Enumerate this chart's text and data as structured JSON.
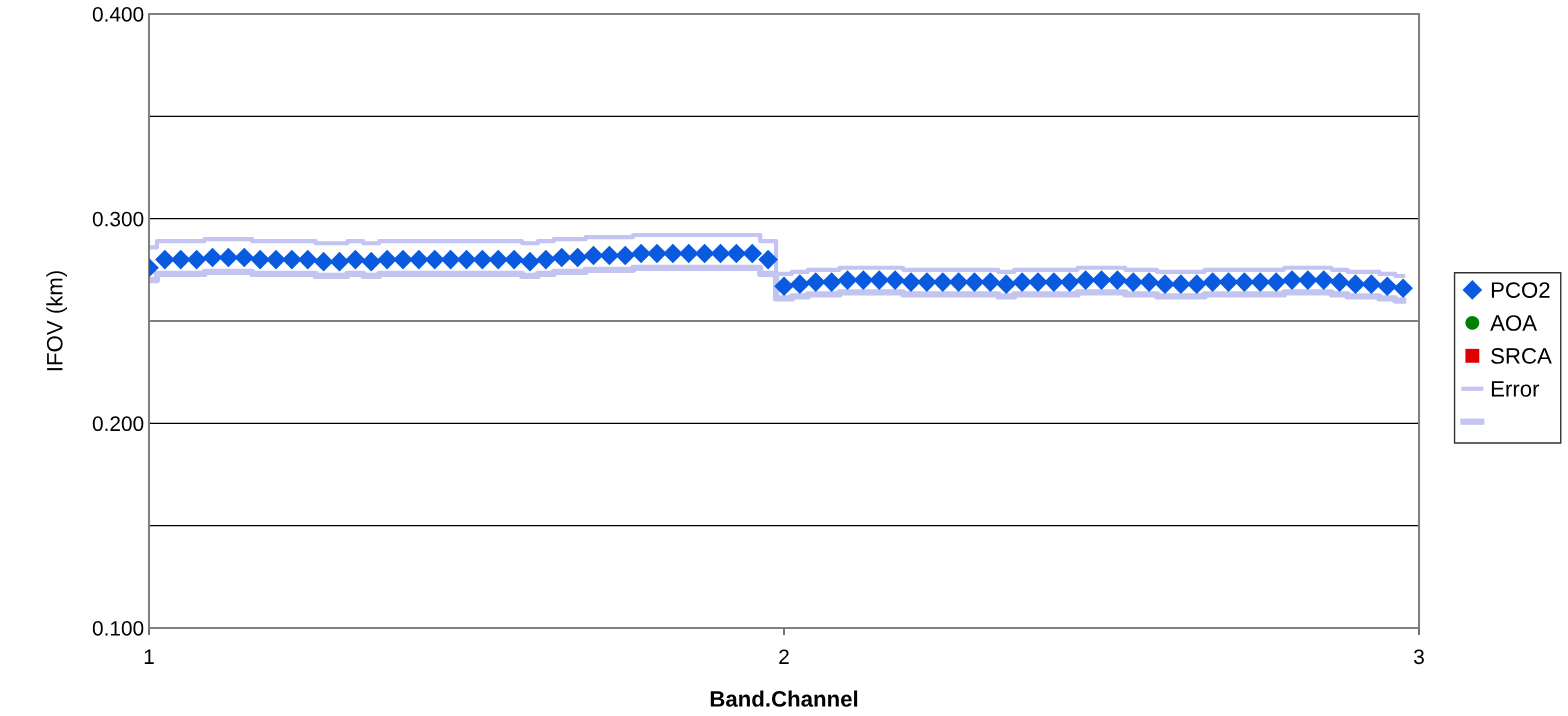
{
  "chart_data": {
    "type": "scatter",
    "xlabel": "Band.Channel",
    "ylabel": "IFOV (km)",
    "x": [
      1,
      1.025,
      1.05,
      1.075,
      1.1,
      1.125,
      1.15,
      1.175,
      1.2,
      1.225,
      1.25,
      1.275,
      1.3,
      1.325,
      1.35,
      1.375,
      1.4,
      1.425,
      1.45,
      1.475,
      1.5,
      1.525,
      1.55,
      1.575,
      1.6,
      1.625,
      1.65,
      1.675,
      1.7,
      1.725,
      1.75,
      1.775,
      1.8,
      1.825,
      1.85,
      1.875,
      1.9,
      1.925,
      1.95,
      1.975,
      2,
      2.025,
      2.05,
      2.075,
      2.1,
      2.125,
      2.15,
      2.175,
      2.2,
      2.225,
      2.25,
      2.275,
      2.3,
      2.325,
      2.35,
      2.375,
      2.4,
      2.425,
      2.45,
      2.475,
      2.5,
      2.525,
      2.55,
      2.575,
      2.6,
      2.625,
      2.65,
      2.675,
      2.7,
      2.725,
      2.75,
      2.775,
      2.8,
      2.825,
      2.85,
      2.875,
      2.9,
      2.925,
      2.95,
      2.975
    ],
    "series": [
      {
        "name": "PCO2",
        "color": "#0a5ae0",
        "marker": "diamond",
        "values": [
          0.276,
          0.28,
          0.28,
          0.28,
          0.281,
          0.281,
          0.281,
          0.28,
          0.28,
          0.28,
          0.28,
          0.279,
          0.279,
          0.28,
          0.279,
          0.28,
          0.28,
          0.28,
          0.28,
          0.28,
          0.28,
          0.28,
          0.28,
          0.28,
          0.279,
          0.28,
          0.281,
          0.281,
          0.282,
          0.282,
          0.282,
          0.283,
          0.283,
          0.283,
          0.283,
          0.283,
          0.283,
          0.283,
          0.283,
          0.28,
          0.267,
          0.268,
          0.269,
          0.269,
          0.27,
          0.27,
          0.27,
          0.27,
          0.269,
          0.269,
          0.269,
          0.269,
          0.269,
          0.269,
          0.268,
          0.269,
          0.269,
          0.269,
          0.269,
          0.27,
          0.27,
          0.27,
          0.269,
          0.269,
          0.268,
          0.268,
          0.268,
          0.269,
          0.269,
          0.269,
          0.269,
          0.269,
          0.27,
          0.27,
          0.27,
          0.269,
          0.268,
          0.268,
          0.267,
          0.266
        ]
      },
      {
        "name": "AOA",
        "color": "#008000",
        "marker": "circle",
        "values": [
          null,
          null,
          null,
          null,
          null,
          null,
          null,
          null,
          null,
          null,
          null,
          null,
          null,
          null,
          null,
          null,
          null,
          null,
          null,
          null,
          null,
          null,
          null,
          null,
          null,
          null,
          null,
          null,
          null,
          null,
          null,
          null,
          null,
          null,
          null,
          null,
          null,
          null,
          null,
          null,
          null,
          null,
          null,
          null,
          null,
          null,
          null,
          null,
          null,
          null,
          null,
          null,
          null,
          null,
          null,
          null,
          null,
          null,
          null,
          null,
          null,
          null,
          null,
          null,
          null,
          null,
          null,
          null,
          null,
          null,
          null,
          null,
          null,
          null,
          null,
          null,
          null,
          null,
          null,
          null
        ]
      },
      {
        "name": "SRCA",
        "color": "#e00000",
        "marker": "square",
        "values": [
          null,
          null,
          null,
          null,
          null,
          null,
          null,
          null,
          null,
          null,
          null,
          null,
          null,
          null,
          null,
          null,
          null,
          null,
          null,
          null,
          null,
          null,
          null,
          null,
          null,
          null,
          null,
          null,
          null,
          null,
          null,
          null,
          null,
          null,
          null,
          null,
          null,
          null,
          null,
          null,
          null,
          null,
          null,
          null,
          null,
          null,
          null,
          null,
          null,
          null,
          null,
          null,
          null,
          null,
          null,
          null,
          null,
          null,
          null,
          null,
          null,
          null,
          null,
          null,
          null,
          null,
          null,
          null,
          null,
          null,
          null,
          null,
          null,
          null,
          null,
          null,
          null,
          null,
          null,
          null
        ]
      },
      {
        "name": "Error",
        "type": "step",
        "color": "#c4c4f2",
        "values": [
          0.286,
          0.289,
          0.289,
          0.289,
          0.29,
          0.29,
          0.29,
          0.289,
          0.289,
          0.289,
          0.289,
          0.288,
          0.288,
          0.289,
          0.288,
          0.289,
          0.289,
          0.289,
          0.289,
          0.289,
          0.289,
          0.289,
          0.289,
          0.289,
          0.288,
          0.289,
          0.29,
          0.29,
          0.291,
          0.291,
          0.291,
          0.292,
          0.292,
          0.292,
          0.292,
          0.292,
          0.292,
          0.292,
          0.292,
          0.289,
          0.273,
          0.274,
          0.275,
          0.275,
          0.276,
          0.276,
          0.276,
          0.276,
          0.275,
          0.275,
          0.275,
          0.275,
          0.275,
          0.275,
          0.274,
          0.275,
          0.275,
          0.275,
          0.275,
          0.276,
          0.276,
          0.276,
          0.275,
          0.275,
          0.274,
          0.274,
          0.274,
          0.275,
          0.275,
          0.275,
          0.275,
          0.275,
          0.276,
          0.276,
          0.276,
          0.275,
          0.274,
          0.274,
          0.273,
          0.272
        ]
      },
      {
        "type": "step",
        "color": "#c4c4f1",
        "values": [
          0.27,
          0.273,
          0.273,
          0.273,
          0.274,
          0.274,
          0.274,
          0.273,
          0.273,
          0.273,
          0.273,
          0.272,
          0.272,
          0.273,
          0.272,
          0.273,
          0.273,
          0.273,
          0.273,
          0.273,
          0.273,
          0.273,
          0.273,
          0.273,
          0.272,
          0.273,
          0.274,
          0.274,
          0.275,
          0.275,
          0.275,
          0.276,
          0.276,
          0.276,
          0.276,
          0.276,
          0.276,
          0.276,
          0.276,
          0.273,
          0.261,
          0.262,
          0.263,
          0.263,
          0.264,
          0.264,
          0.264,
          0.264,
          0.263,
          0.263,
          0.263,
          0.263,
          0.263,
          0.263,
          0.262,
          0.263,
          0.263,
          0.263,
          0.263,
          0.264,
          0.264,
          0.264,
          0.263,
          0.263,
          0.262,
          0.262,
          0.262,
          0.263,
          0.263,
          0.263,
          0.263,
          0.263,
          0.264,
          0.264,
          0.264,
          0.263,
          0.262,
          0.262,
          0.261,
          0.26
        ]
      }
    ],
    "xlim": [
      1,
      3
    ],
    "xticks": [
      1,
      2,
      3
    ],
    "ylim": [
      0.1,
      0.4
    ],
    "yticks": [
      {
        "value": 0.1,
        "label": "0.100"
      },
      {
        "value": 0.15,
        "label": null
      },
      {
        "value": 0.2,
        "label": "0.200"
      },
      {
        "value": 0.25,
        "label": null
      },
      {
        "value": 0.3,
        "label": "0.300"
      },
      {
        "value": 0.35,
        "label": null
      },
      {
        "value": 0.4,
        "label": "0.400"
      }
    ],
    "grid": "y",
    "legend": "right"
  }
}
